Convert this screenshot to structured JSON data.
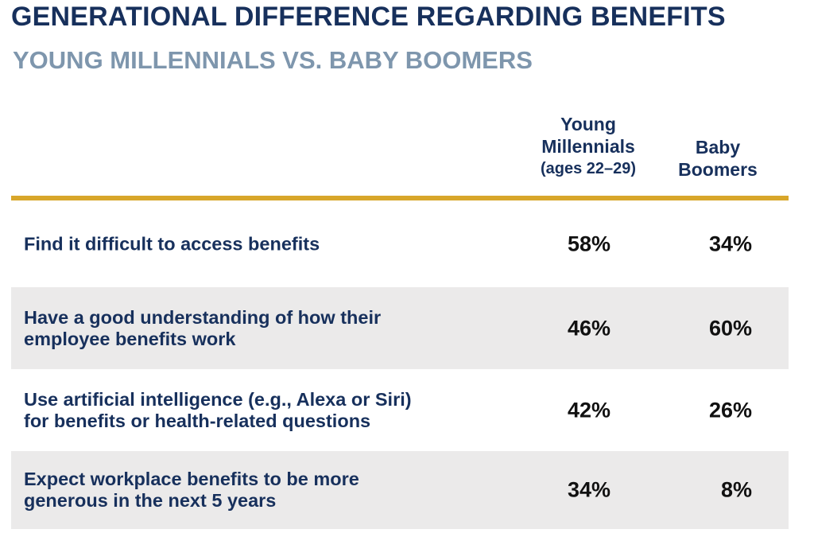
{
  "chart_data": {
    "type": "table",
    "title": "GENERATIONAL DIFFERENCE REGARDING BENEFITS",
    "subtitle": "YOUNG MILLENNIALS VS. BABY BOOMERS",
    "columns": [
      {
        "lines": [
          "Young",
          "Millennials",
          "(ages 22–29)"
        ]
      },
      {
        "lines": [
          "Baby",
          "Boomers"
        ]
      }
    ],
    "rows": [
      {
        "label_lines": [
          "Find it difficult to access benefits"
        ],
        "young": "58%",
        "boomer": "34%",
        "shaded": false
      },
      {
        "label_lines": [
          "Have a good understanding of how their",
          "employee benefits work"
        ],
        "young": "46%",
        "boomer": "60%",
        "shaded": true
      },
      {
        "label_lines": [
          "Use artificial intelligence (e.g., Alexa or Siri)",
          "for benefits or health-related questions"
        ],
        "young": "42%",
        "boomer": "26%",
        "shaded": false
      },
      {
        "label_lines": [
          "Expect workplace benefits to be more",
          "generous in the next 5 years"
        ],
        "young": "34%",
        "boomer": "8%",
        "shaded": true
      }
    ],
    "accent_color": "#d8a62a",
    "title_color": "#17305c",
    "subtitle_color": "#7e96ad",
    "shade_color": "#ebeaea"
  }
}
